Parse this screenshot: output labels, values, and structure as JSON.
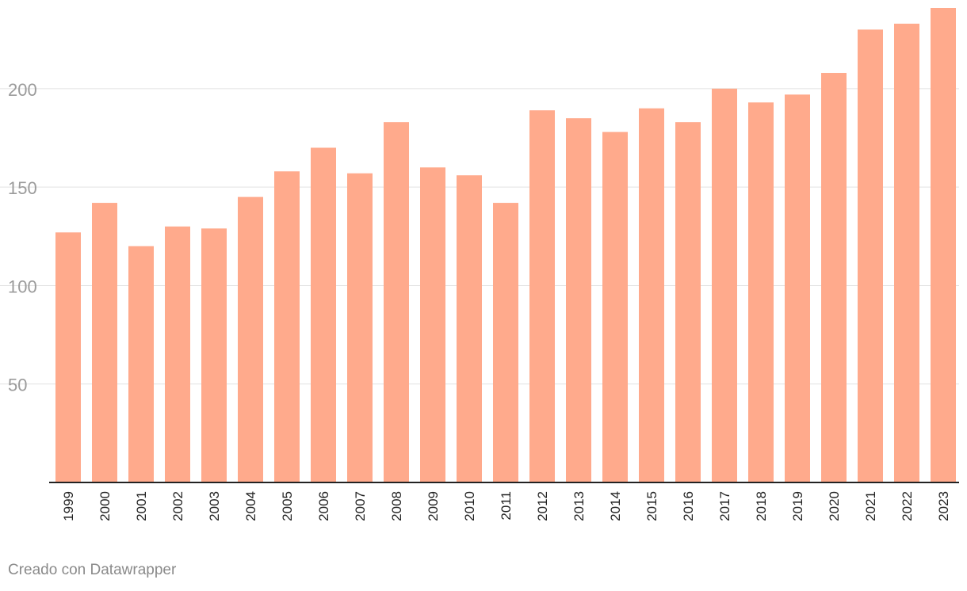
{
  "colors": {
    "bar": "#ffaa8c",
    "grid": "#e2e2e2",
    "axis_line": "#222222",
    "y_tick_text": "#9b9b9b",
    "x_tick_text": "#222222",
    "credit_text": "#8a8a8a"
  },
  "footer": {
    "credit": "Creado con Datawrapper"
  },
  "chart_data": {
    "type": "bar",
    "title": "",
    "xlabel": "",
    "ylabel": "",
    "categories": [
      "1999",
      "2000",
      "2001",
      "2002",
      "2003",
      "2004",
      "2005",
      "2006",
      "2007",
      "2008",
      "2009",
      "2010",
      "2011",
      "2012",
      "2013",
      "2014",
      "2015",
      "2016",
      "2017",
      "2018",
      "2019",
      "2020",
      "2021",
      "2022",
      "2023"
    ],
    "values": [
      127,
      142,
      120,
      130,
      129,
      145,
      158,
      170,
      157,
      183,
      160,
      156,
      142,
      189,
      185,
      178,
      190,
      183,
      200,
      193,
      197,
      208,
      230,
      233,
      241
    ],
    "ylim": [
      0,
      241
    ],
    "yticks": [
      50,
      100,
      150,
      200
    ],
    "grid": true,
    "legend": "none"
  }
}
